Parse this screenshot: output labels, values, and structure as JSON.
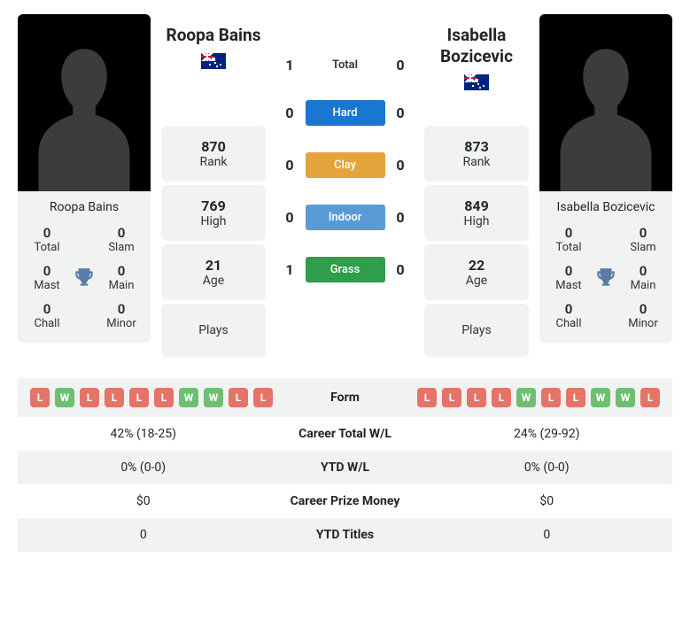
{
  "players": {
    "p1": {
      "name": "Roopa Bains",
      "country": "AUS",
      "rank": 870,
      "high": 769,
      "age": 21,
      "plays": "",
      "titles": {
        "total": 0,
        "slam": 0,
        "mast": 0,
        "main": 0,
        "chall": 0,
        "minor": 0
      },
      "form": [
        "L",
        "W",
        "L",
        "L",
        "L",
        "L",
        "W",
        "W",
        "L",
        "L"
      ],
      "career_wl": "42% (18-25)",
      "ytd_wl": "0% (0-0)",
      "prize": "$0",
      "ytd_titles": "0"
    },
    "p2": {
      "name": "Isabella Bozicevic",
      "country": "AUS",
      "rank": 873,
      "high": 849,
      "age": 22,
      "plays": "",
      "titles": {
        "total": 0,
        "slam": 0,
        "mast": 0,
        "main": 0,
        "chall": 0,
        "minor": 0
      },
      "form": [
        "L",
        "L",
        "L",
        "L",
        "W",
        "L",
        "L",
        "W",
        "W",
        "L"
      ],
      "career_wl": "24% (29-92)",
      "ytd_wl": "0% (0-0)",
      "prize": "$0",
      "ytd_titles": "0"
    }
  },
  "h2h": {
    "total": {
      "p1": 1,
      "p2": 0,
      "label": "Total"
    },
    "hard": {
      "p1": 0,
      "p2": 0,
      "label": "Hard"
    },
    "clay": {
      "p1": 0,
      "p2": 0,
      "label": "Clay"
    },
    "indoor": {
      "p1": 0,
      "p2": 0,
      "label": "Indoor"
    },
    "grass": {
      "p1": 1,
      "p2": 0,
      "label": "Grass"
    }
  },
  "labels": {
    "rank": "Rank",
    "high": "High",
    "age": "Age",
    "plays": "Plays",
    "total": "Total",
    "slam": "Slam",
    "mast": "Mast",
    "main": "Main",
    "chall": "Chall",
    "minor": "Minor",
    "form": "Form",
    "career_wl": "Career Total W/L",
    "ytd_wl": "YTD W/L",
    "prize": "Career Prize Money",
    "ytd_titles": "YTD Titles"
  },
  "colors": {
    "hard": "#1976d2",
    "clay": "#e5a43b",
    "indoor": "#5b9bd5",
    "grass": "#2e9e4a",
    "win_chip": "#6fbf73",
    "loss_chip": "#e57368",
    "card_bg": "#f1f2f2",
    "trophy": "#5a7ba6"
  }
}
